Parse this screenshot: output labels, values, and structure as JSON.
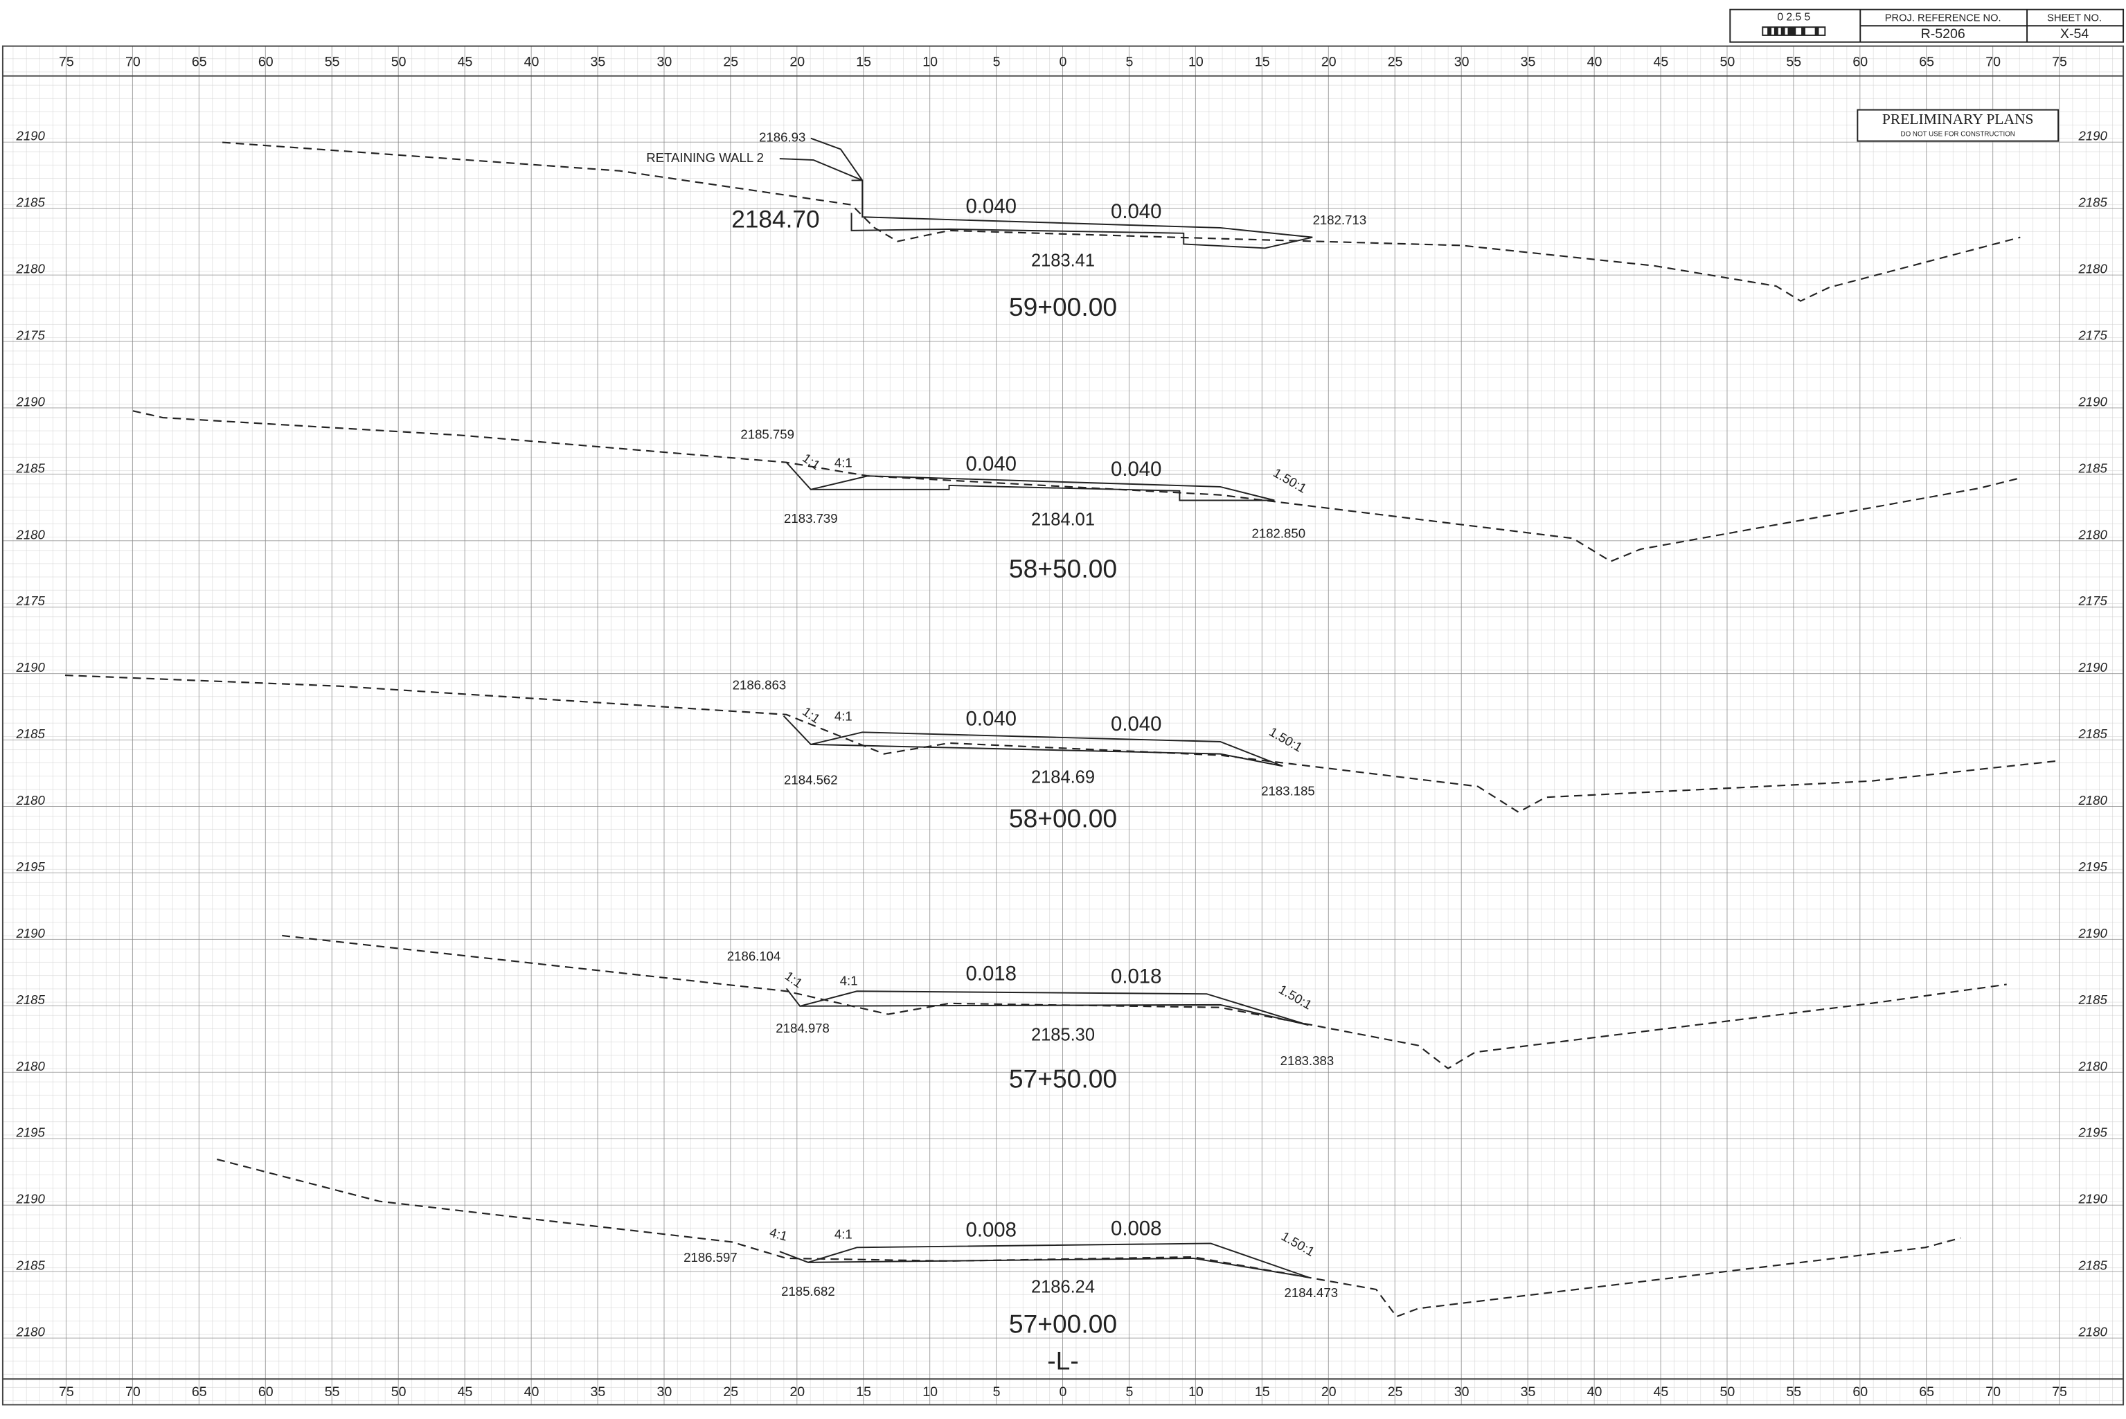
{
  "header": {
    "scale": "0   2.5   5",
    "proj_ref_label": "PROJ. REFERENCE NO.",
    "proj_ref": "R-5206",
    "sheet_label": "SHEET NO.",
    "sheet": "X-54"
  },
  "stamp": {
    "title": "PRELIMINARY PLANS",
    "note": "DO NOT USE FOR CONSTRUCTION"
  },
  "offsets": [
    "75",
    "70",
    "65",
    "60",
    "55",
    "50",
    "45",
    "40",
    "35",
    "30",
    "25",
    "20",
    "15",
    "10",
    "5",
    "0",
    "5",
    "10",
    "15",
    "20",
    "25",
    "30",
    "35",
    "40",
    "45",
    "50",
    "55",
    "60",
    "65",
    "70",
    "75"
  ],
  "elevations": [
    "2190",
    "2185",
    "2180",
    "2175",
    "2190",
    "2185",
    "2180",
    "2175",
    "2190",
    "2185",
    "2180",
    "2195",
    "2190",
    "2185",
    "2180",
    "2195",
    "2190",
    "2185",
    "2180"
  ],
  "sections": [
    {
      "station": "59+00.00",
      "center_elevation": "2183.41",
      "slopes": [
        "0.040",
        "0.040"
      ],
      "labels": [
        "2186.93",
        "RETAINING  WALL 2",
        "2184.70",
        "2182.713"
      ]
    },
    {
      "station": "58+50.00",
      "center_elevation": "2184.01",
      "slopes": [
        "0.040",
        "0.040"
      ],
      "labels": [
        "2185.759",
        "2183.739",
        "2182.850"
      ],
      "side_slopes": [
        "1:1",
        "4:1",
        "1.50:1"
      ]
    },
    {
      "station": "58+00.00",
      "center_elevation": "2184.69",
      "slopes": [
        "0.040",
        "0.040"
      ],
      "labels": [
        "2186.863",
        "2184.562",
        "2183.185"
      ],
      "side_slopes": [
        "1:1",
        "4:1",
        "1.50:1"
      ]
    },
    {
      "station": "57+50.00",
      "center_elevation": "2185.30",
      "slopes": [
        "0.018",
        "0.018"
      ],
      "labels": [
        "2186.104",
        "2184.978",
        "2183.383"
      ],
      "side_slopes": [
        "1:1",
        "4:1",
        "1.50:1"
      ]
    },
    {
      "station": "57+00.00",
      "center_elevation": "2186.24",
      "slopes": [
        "0.008",
        "0.008"
      ],
      "labels": [
        "2186.597",
        "2185.682",
        "2184.473"
      ],
      "side_slopes": [
        "4:1",
        "4:1",
        "1.50:1"
      ]
    }
  ],
  "centerline": "-L-"
}
